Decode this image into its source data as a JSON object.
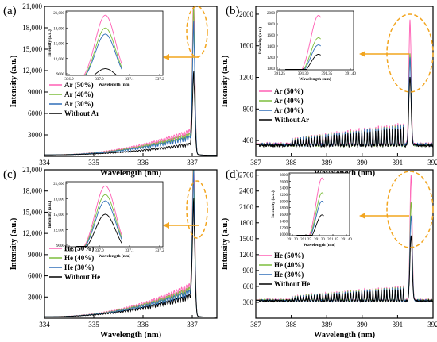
{
  "colors": {
    "50": "#ff5fb4",
    "40": "#7cbe3c",
    "30": "#2f6db8",
    "0": "#000000",
    "highlight": "#f2a51f"
  },
  "chart_data": [
    {
      "panel_label": "(a)",
      "type": "line",
      "xlabel": "Wavelength (nm)",
      "ylabel": "Intensity (a.u.)",
      "xlim": [
        334,
        337.5
      ],
      "ylim": [
        0,
        21000
      ],
      "xticks": [
        "334",
        "335",
        "336",
        "337"
      ],
      "yticks": [
        "3000",
        "6000",
        "9000",
        "12,000",
        "15,000",
        "18,000",
        "21,000"
      ],
      "peak_x": 337.03,
      "series": [
        {
          "name": "Ar (50%)",
          "color_key": "50",
          "peak": 20500,
          "end": 2800
        },
        {
          "name": "Ar (40%)",
          "color_key": "40",
          "peak": 18000,
          "end": 2400
        },
        {
          "name": "Ar (30%)",
          "color_key": "30",
          "peak": 16000,
          "end": 2100
        },
        {
          "name": "Without Ar",
          "color_key": "0",
          "peak": 10000,
          "end": 1300
        }
      ],
      "inset": {
        "xlabel": "Wavelength (nm)",
        "ylabel": "Intensity (a.u.)",
        "xticks": [
          "336.9",
          "337.0",
          "337.1",
          "337.2"
        ],
        "yticks": [
          "9000",
          "12,000",
          "15,000",
          "18,000",
          "21,000"
        ],
        "peaks": [
          20500,
          18000,
          16800,
          10000
        ]
      }
    },
    {
      "panel_label": "(b)",
      "type": "line",
      "xlabel": "Wavelength (nm)",
      "ylabel": "Intensity (a.u.)",
      "xlim": [
        387,
        392
      ],
      "ylim": [
        200,
        2100
      ],
      "xticks": [
        "387",
        "388",
        "389",
        "390",
        "391",
        "392"
      ],
      "yticks": [
        "400",
        "800",
        "1200",
        "1600",
        "2000"
      ],
      "peak_x": 391.35,
      "series": [
        {
          "name": "Ar (50%)",
          "color_key": "50",
          "peak": 1920,
          "base": 350
        },
        {
          "name": "Ar (40%)",
          "color_key": "40",
          "peak": 1500,
          "base": 340
        },
        {
          "name": "Ar (30%)",
          "color_key": "30",
          "peak": 1450,
          "base": 345
        },
        {
          "name": "Without Ar",
          "color_key": "0",
          "peak": 1200,
          "base": 335
        }
      ],
      "inset": {
        "xlabel": "Wavelength (nm)",
        "ylabel": "Intensity (a.u.)",
        "xticks": [
          "391.25",
          "391.30",
          "391.35",
          "391.40"
        ],
        "yticks": [
          "1000",
          "1200",
          "1400",
          "1600",
          "1800",
          "2000"
        ],
        "peaks": [
          1950,
          1550,
          1420,
          1250
        ]
      }
    },
    {
      "panel_label": "(c)",
      "type": "line",
      "xlabel": "Wavelength (nm)",
      "ylabel": "Intensity (a.u.)",
      "xlim": [
        334,
        337.5
      ],
      "ylim": [
        0,
        21000
      ],
      "xticks": [
        "334",
        "335",
        "336",
        "337"
      ],
      "yticks": [
        "3000",
        "6000",
        "9000",
        "12,000",
        "15,000",
        "18,000",
        "21,000"
      ],
      "peak_x": 337.03,
      "series": [
        {
          "name": "He (50%)",
          "color_key": "50",
          "peak": 20500,
          "end": 3700
        },
        {
          "name": "He (40%)",
          "color_key": "40",
          "peak": 18500,
          "end": 3300
        },
        {
          "name": "He (30%)",
          "color_key": "30",
          "peak": 16800,
          "end": 3000
        },
        {
          "name": "Without He",
          "color_key": "0",
          "peak": 13500,
          "end": 2500
        }
      ],
      "inset": {
        "xlabel": "Wavelength (nm)",
        "ylabel": "Intensity (a.u.)",
        "xticks": [
          "336.9",
          "337.0",
          "337.1",
          "337.2"
        ],
        "yticks": [
          "9000",
          "12,000",
          "15,000",
          "18,000",
          "21,000"
        ],
        "peaks": [
          20500,
          18800,
          17600,
          15000
        ]
      }
    },
    {
      "panel_label": "(d)",
      "type": "line",
      "xlabel": "Wavelength (nm)",
      "ylabel": "Intensity (a.u.)",
      "xlim": [
        387,
        392
      ],
      "ylim": [
        0,
        2800
      ],
      "xticks": [
        "387",
        "388",
        "389",
        "390",
        "391",
        "392"
      ],
      "yticks": [
        "300",
        "600",
        "900",
        "1200",
        "1500",
        "1800",
        "2100",
        "2400",
        "2700"
      ],
      "peak_x": 391.38,
      "series": [
        {
          "name": "He (50%)",
          "color_key": "50",
          "peak": 2700,
          "base": 340
        },
        {
          "name": "He (40%)",
          "color_key": "40",
          "peak": 2200,
          "base": 335
        },
        {
          "name": "He (30%)",
          "color_key": "30",
          "peak": 1950,
          "base": 330
        },
        {
          "name": "Without He",
          "color_key": "0",
          "peak": 1550,
          "base": 325
        }
      ],
      "inset": {
        "xlabel": "Wavelength (nm)",
        "ylabel": "Intensity (a.u.)",
        "xticks": [
          "391.20",
          "391.25",
          "391.30",
          "391.35",
          "391.40"
        ],
        "yticks": [
          "1000",
          "1200",
          "1400",
          "1600",
          "1800",
          "2000",
          "2200",
          "2400",
          "2600",
          "2800"
        ],
        "peaks": [
          2700,
          2250,
          2000,
          1580
        ]
      }
    }
  ]
}
